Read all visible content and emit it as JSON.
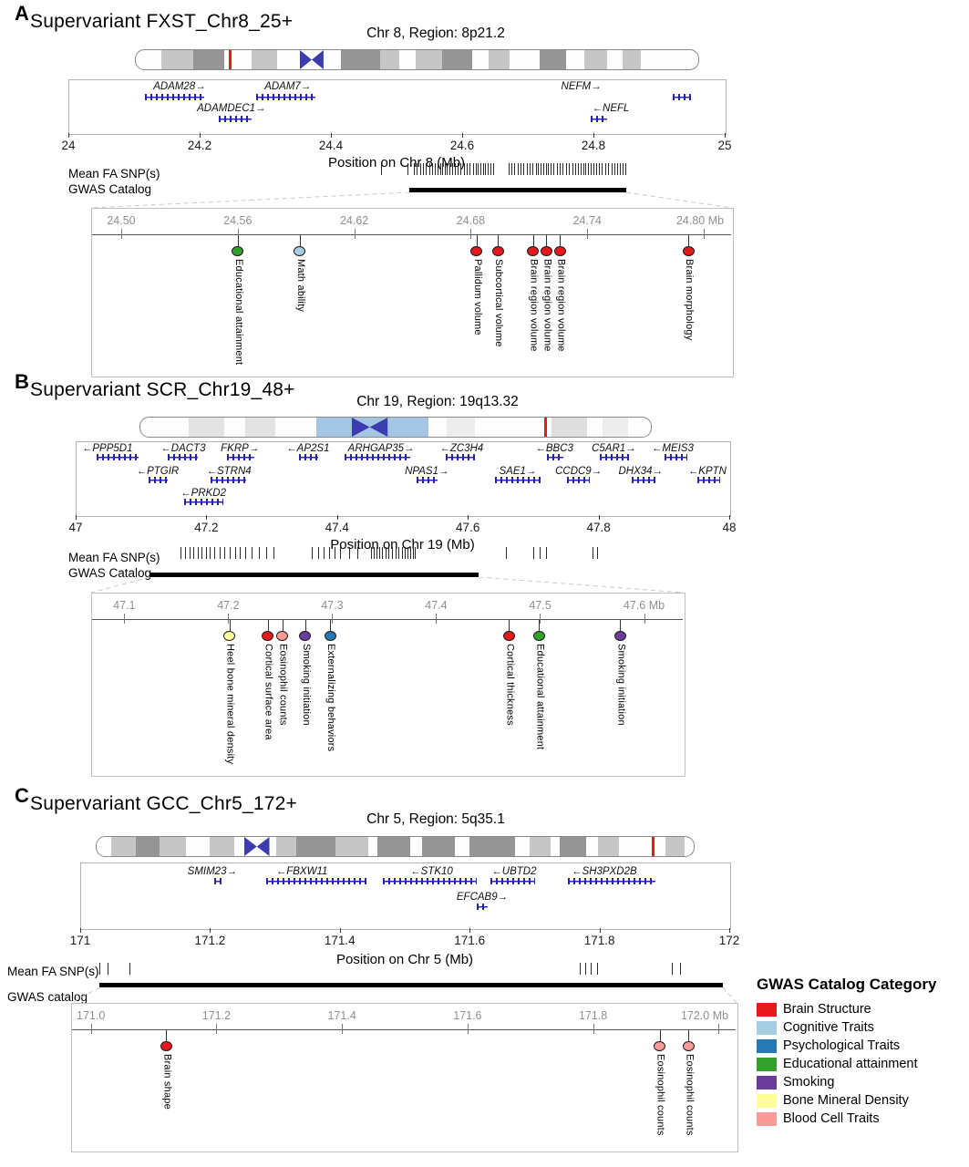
{
  "legend": {
    "title": "GWAS Catalog Category",
    "items": [
      {
        "label": "Brain Structure",
        "color": "#e3191c"
      },
      {
        "label": "Cognitive Traits",
        "color": "#a6cee3"
      },
      {
        "label": "Psychological Traits",
        "color": "#2779b5"
      },
      {
        "label": "Educational attainment",
        "color": "#33a02c"
      },
      {
        "label": "Smoking",
        "color": "#6a3d9a"
      },
      {
        "label": "Bone Mineral Density",
        "color": "#ffff99"
      },
      {
        "label": "Blood Cell Traits",
        "color": "#fb9a99"
      }
    ]
  },
  "chart_data": [
    {
      "type": "scatter",
      "panel_label": "A",
      "title": "Supervariant FXST_Chr8_25+",
      "region_label": "Chr 8, Region: 8p21.2",
      "axis": {
        "label": "Position on Chr 8 (Mb)",
        "min": 24,
        "max": 25,
        "tick_values": [
          24,
          24.2,
          24.4,
          24.6,
          24.8,
          25
        ],
        "ticks": [
          "24",
          "24.2",
          "24.4",
          "24.6",
          "24.8",
          "25"
        ]
      },
      "snp_track_label": "Mean FA SNP(s)",
      "gwas_track_label": "GWAS Catalog",
      "ideogram": {
        "red_line": 0.168,
        "centromere": [
          0.292,
          0.334
        ],
        "bands": [
          [
            0.046,
            0.102,
            "#c6c6c6"
          ],
          [
            0.102,
            0.158,
            "#959595"
          ],
          [
            0.206,
            0.252,
            "#c6c6c6"
          ],
          [
            0.365,
            0.435,
            "#959595"
          ],
          [
            0.435,
            0.468,
            "#c6c6c6"
          ],
          [
            0.497,
            0.545,
            "#c6c6c6"
          ],
          [
            0.545,
            0.598,
            "#959595"
          ],
          [
            0.628,
            0.665,
            "#c6c6c6"
          ],
          [
            0.718,
            0.765,
            "#959595"
          ],
          [
            0.797,
            0.838,
            "#c6c6c6"
          ],
          [
            0.865,
            0.898,
            "#c6c6c6"
          ]
        ]
      },
      "genes": [
        {
          "name": "ADAM28",
          "dir": "right",
          "label_pos": 24.168,
          "row": 0,
          "struct": [
            24.115,
            24.205
          ]
        },
        {
          "name": "ADAM7",
          "dir": "right",
          "label_pos": 24.333,
          "row": 0,
          "struct": [
            24.285,
            24.375
          ]
        },
        {
          "name": "NEFM",
          "dir": "right",
          "label_pos": 24.78,
          "row": 0,
          "struct": [
            24.92,
            24.947
          ]
        },
        {
          "name": "ADAMDEC1",
          "dir": "right",
          "label_pos": 24.247,
          "row": 1,
          "struct": [
            24.228,
            24.278
          ]
        },
        {
          "name": "NEFL",
          "dir": "left",
          "label_pos": 24.825,
          "row": 1,
          "struct": [
            24.795,
            24.82
          ]
        }
      ],
      "snp_tick_clusters": [
        [
          24.476,
          24.476,
          1
        ],
        [
          24.516,
          24.516,
          1
        ],
        [
          24.528,
          24.648,
          30
        ],
        [
          24.672,
          24.848,
          42
        ]
      ],
      "gwas_bar": [
        24.52,
        24.85
      ],
      "zoom": {
        "range": [
          24.485,
          24.815
        ],
        "ticks": [
          [
            24.5,
            "24.50"
          ],
          [
            24.56,
            "24.56"
          ],
          [
            24.62,
            "24.62"
          ],
          [
            24.68,
            "24.68"
          ],
          [
            24.74,
            "24.74"
          ],
          [
            24.8,
            "24.80 Mb"
          ]
        ],
        "hits": [
          {
            "pos": 24.56,
            "trait": "Educational attainment",
            "category": "Educational attainment"
          },
          {
            "pos": 24.592,
            "trait": "Math ability",
            "category": "Cognitive Traits"
          },
          {
            "pos": 24.683,
            "trait": "Pallidum volume",
            "category": "Brain Structure"
          },
          {
            "pos": 24.694,
            "trait": "Subcortical volume",
            "category": "Brain Structure"
          },
          {
            "pos": 24.712,
            "trait": "Brain region volume",
            "category": "Brain Structure"
          },
          {
            "pos": 24.719,
            "trait": "Brain region volume",
            "category": "Brain Structure"
          },
          {
            "pos": 24.726,
            "trait": "Brain region volume",
            "category": "Brain Structure"
          },
          {
            "pos": 24.792,
            "trait": "Brain morphology",
            "category": "Brain Structure"
          }
        ]
      }
    },
    {
      "type": "scatter",
      "panel_label": "B",
      "title": "Supervariant SCR_Chr19_48+",
      "region_label": "Chr 19, Region: 19q13.32",
      "axis": {
        "label": "Position on Chr 19 (Mb)",
        "min": 47,
        "max": 48,
        "tick_values": [
          47,
          47.2,
          47.4,
          47.6,
          47.8,
          48
        ],
        "ticks": [
          "47",
          "47.2",
          "47.4",
          "47.6",
          "47.8",
          "48"
        ]
      },
      "snp_track_label": "Mean FA SNP(s)",
      "gwas_track_label": "GWAS Catalog",
      "ideogram": {
        "red_line": 0.793,
        "centromere": [
          0.415,
          0.485
        ],
        "bands": [
          [
            0.095,
            0.165,
            "#e3e3e3"
          ],
          [
            0.205,
            0.265,
            "#e3e3e3"
          ],
          [
            0.345,
            0.565,
            "#a5c6e3"
          ],
          [
            0.6,
            0.655,
            "#ededed"
          ],
          [
            0.805,
            0.875,
            "#dedede"
          ],
          [
            0.905,
            0.955,
            "#ededed"
          ]
        ]
      },
      "genes": [
        {
          "name": "PPP5D1",
          "dir": "left",
          "label_pos": 47.047,
          "row": 0,
          "struct": [
            47.03,
            47.095
          ]
        },
        {
          "name": "DACT3",
          "dir": "left",
          "label_pos": 47.163,
          "row": 0,
          "struct": [
            47.14,
            47.185
          ]
        },
        {
          "name": "FKRP",
          "dir": "right",
          "label_pos": 47.25,
          "row": 0,
          "struct": [
            47.23,
            47.272
          ]
        },
        {
          "name": "AP2S1",
          "dir": "left",
          "label_pos": 47.354,
          "row": 0,
          "struct": [
            47.34,
            47.37
          ]
        },
        {
          "name": "ARHGAP35",
          "dir": "right",
          "label_pos": 47.466,
          "row": 0,
          "struct": [
            47.41,
            47.51
          ]
        },
        {
          "name": "ZC3H4",
          "dir": "left",
          "label_pos": 47.589,
          "row": 0,
          "struct": [
            47.565,
            47.61
          ]
        },
        {
          "name": "BBC3",
          "dir": "left",
          "label_pos": 47.731,
          "row": 0,
          "struct": [
            47.72,
            47.745
          ]
        },
        {
          "name": "C5AR1",
          "dir": "right",
          "label_pos": 47.822,
          "row": 0,
          "struct": [
            47.8,
            47.845
          ]
        },
        {
          "name": "MEIS3",
          "dir": "left",
          "label_pos": 47.912,
          "row": 0,
          "struct": [
            47.9,
            47.935
          ]
        },
        {
          "name": "PTGIR",
          "dir": "left",
          "label_pos": 47.124,
          "row": 1,
          "struct": [
            47.11,
            47.14
          ]
        },
        {
          "name": "STRN4",
          "dir": "left",
          "label_pos": 47.233,
          "row": 1,
          "struct": [
            47.205,
            47.26
          ]
        },
        {
          "name": "NPAS1",
          "dir": "right",
          "label_pos": 47.536,
          "row": 1,
          "struct": [
            47.52,
            47.552
          ]
        },
        {
          "name": "SAE1",
          "dir": "right",
          "label_pos": 47.675,
          "row": 1,
          "struct": [
            47.64,
            47.71
          ]
        },
        {
          "name": "CCDC9",
          "dir": "right",
          "label_pos": 47.768,
          "row": 1,
          "struct": [
            47.75,
            47.785
          ]
        },
        {
          "name": "DHX34",
          "dir": "right",
          "label_pos": 47.863,
          "row": 1,
          "struct": [
            47.85,
            47.885
          ]
        },
        {
          "name": "KPTN",
          "dir": "left",
          "label_pos": 47.965,
          "row": 1,
          "struct": [
            47.95,
            47.985
          ]
        },
        {
          "name": "PRKD2",
          "dir": "left",
          "label_pos": 47.194,
          "row": 2,
          "struct": [
            47.165,
            47.225
          ]
        }
      ],
      "snp_tick_clusters": [
        [
          47.158,
          47.25,
          14
        ],
        [
          47.262,
          47.302,
          5
        ],
        [
          47.362,
          47.402,
          6
        ],
        [
          47.415,
          47.428,
          2
        ],
        [
          47.452,
          47.52,
          16
        ],
        [
          47.658,
          47.658,
          1
        ],
        [
          47.7,
          47.722,
          3
        ],
        [
          47.788,
          47.796,
          2
        ]
      ],
      "gwas_bar": [
        47.114,
        47.617
      ],
      "zoom": {
        "range": [
          47.069,
          47.639
        ],
        "ticks": [
          [
            47.1,
            "47.1"
          ],
          [
            47.2,
            "47.2"
          ],
          [
            47.3,
            "47.3"
          ],
          [
            47.4,
            "47.4"
          ],
          [
            47.5,
            "47.5"
          ],
          [
            47.6,
            "47.6 Mb"
          ]
        ],
        "hits": [
          {
            "pos": 47.201,
            "trait": "Heel bone mineral density",
            "category": "Bone Mineral Density"
          },
          {
            "pos": 47.238,
            "trait": "Cortical surface area",
            "category": "Brain Structure"
          },
          {
            "pos": 47.252,
            "trait": "Eosinophil counts",
            "category": "Blood Cell Traits"
          },
          {
            "pos": 47.274,
            "trait": "Smoking initiation",
            "category": "Smoking"
          },
          {
            "pos": 47.298,
            "trait": "Externalizing behaviors",
            "category": "Psychological Traits"
          },
          {
            "pos": 47.47,
            "trait": "Cortical thickness",
            "category": "Brain Structure"
          },
          {
            "pos": 47.499,
            "trait": "Educational attainment",
            "category": "Educational attainment"
          },
          {
            "pos": 47.577,
            "trait": "Smoking initiation",
            "category": "Smoking"
          }
        ]
      }
    },
    {
      "type": "scatter",
      "panel_label": "C",
      "title": "Supervariant GCC_Chr5_172+",
      "region_label": "Chr 5, Region: 5q35.1",
      "axis": {
        "label": "Position on Chr 5 (Mb)",
        "min": 171,
        "max": 172,
        "tick_values": [
          171,
          171.2,
          171.4,
          171.6,
          171.8,
          172
        ],
        "ticks": [
          "171",
          "171.2",
          "171.4",
          "171.6",
          "171.8",
          "172"
        ]
      },
      "snp_track_label": "Mean FA SNP(s)",
      "gwas_track_label": "GWAS catalog",
      "ideogram": {
        "red_line": 0.932,
        "centromere": [
          0.248,
          0.29
        ],
        "bands": [
          [
            0.025,
            0.065,
            "#c6c6c6"
          ],
          [
            0.065,
            0.105,
            "#959595"
          ],
          [
            0.105,
            0.15,
            "#c6c6c6"
          ],
          [
            0.19,
            0.23,
            "#c6c6c6"
          ],
          [
            0.3,
            0.335,
            "#c6c6c6"
          ],
          [
            0.335,
            0.4,
            "#959595"
          ],
          [
            0.4,
            0.455,
            "#c6c6c6"
          ],
          [
            0.47,
            0.525,
            "#959595"
          ],
          [
            0.545,
            0.6,
            "#959595"
          ],
          [
            0.625,
            0.7,
            "#959595"
          ],
          [
            0.725,
            0.76,
            "#c6c6c6"
          ],
          [
            0.775,
            0.82,
            "#959595"
          ],
          [
            0.84,
            0.875,
            "#c6c6c6"
          ],
          [
            0.952,
            0.985,
            "#c6c6c6"
          ]
        ]
      },
      "genes": [
        {
          "name": "SMIM23",
          "dir": "right",
          "label_pos": 171.202,
          "row": 0,
          "struct": [
            171.205,
            171.216
          ]
        },
        {
          "name": "FBXW11",
          "dir": "left",
          "label_pos": 171.34,
          "row": 0,
          "struct": [
            171.285,
            171.44
          ]
        },
        {
          "name": "STK10",
          "dir": "left",
          "label_pos": 171.54,
          "row": 0,
          "struct": [
            171.465,
            171.61
          ]
        },
        {
          "name": "UBTD2",
          "dir": "left",
          "label_pos": 171.667,
          "row": 0,
          "struct": [
            171.63,
            171.7
          ]
        },
        {
          "name": "SH3PXD2B",
          "dir": "left",
          "label_pos": 171.806,
          "row": 0,
          "struct": [
            171.75,
            171.885
          ]
        },
        {
          "name": "EFCAB9",
          "dir": "right",
          "label_pos": 171.618,
          "row": 1,
          "struct": [
            171.61,
            171.626
          ]
        }
      ],
      "snp_tick_clusters": [
        [
          171.03,
          171.03,
          1
        ],
        [
          171.042,
          171.042,
          1
        ],
        [
          171.076,
          171.076,
          1
        ],
        [
          171.772,
          171.798,
          4
        ],
        [
          171.908,
          171.922,
          2
        ]
      ],
      "gwas_bar": [
        171.03,
        171.99
      ],
      "zoom": {
        "range": [
          170.97,
          172.03
        ],
        "ticks": [
          [
            171.0,
            "171.0"
          ],
          [
            171.2,
            "171.2"
          ],
          [
            171.4,
            "171.4"
          ],
          [
            171.6,
            "171.6"
          ],
          [
            171.8,
            "171.8"
          ],
          [
            172.0,
            "172.0 Mb"
          ]
        ],
        "hits": [
          {
            "pos": 171.12,
            "trait": "Brain shape",
            "category": "Brain Structure"
          },
          {
            "pos": 171.906,
            "trait": "Eosinophil counts",
            "category": "Blood Cell Traits"
          },
          {
            "pos": 171.952,
            "trait": "Eosinophil counts",
            "category": "Blood Cell Traits"
          }
        ]
      }
    }
  ]
}
